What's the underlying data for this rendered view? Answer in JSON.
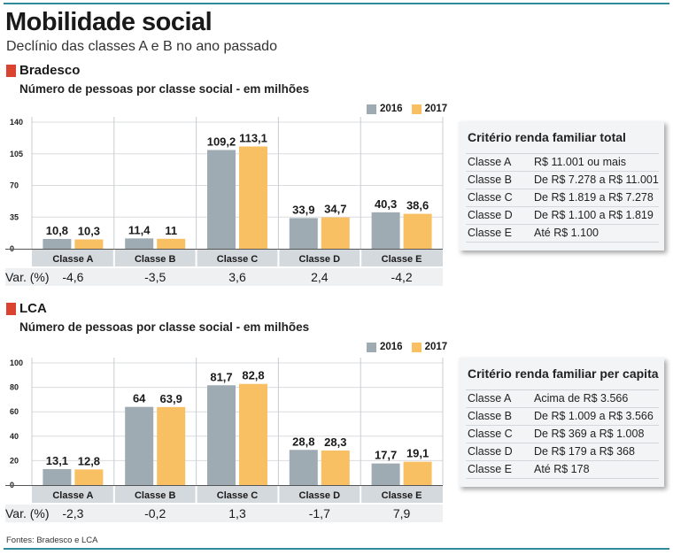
{
  "header": {
    "title": "Mobilidade social",
    "subtitle": "Declínio das classes A e B no ano passado"
  },
  "colors": {
    "series_2016": "#9eabb3",
    "series_2017": "#f8c063",
    "accent": "#d9432f",
    "rule": "#2e8b9a"
  },
  "footer": {
    "source": "Fontes: Bradesco e LCA"
  },
  "chart_data": [
    {
      "type": "bar",
      "section": "Bradesco",
      "title": "Número de pessoas por classe social - em milhões",
      "categories": [
        "Classe A",
        "Classe B",
        "Classe C",
        "Classe D",
        "Classe E"
      ],
      "series": [
        {
          "name": "2016",
          "values": [
            10.8,
            11.4,
            109.2,
            33.9,
            40.3
          ],
          "labels": [
            "10,8",
            "11,4",
            "109,2",
            "33,9",
            "40,3"
          ]
        },
        {
          "name": "2017",
          "values": [
            10.3,
            11,
            113.1,
            34.7,
            38.6
          ],
          "labels": [
            "10,3",
            "11",
            "113,1",
            "34,7",
            "38,6"
          ]
        }
      ],
      "ylim": [
        0,
        140
      ],
      "yticks": [
        0,
        35,
        70,
        105,
        140
      ],
      "variation_label": "Var. (%)",
      "variation": [
        "-4,6",
        "-3,5",
        "3,6",
        "2,4",
        "-4,2"
      ],
      "criteria": {
        "title": "Critério renda familiar total",
        "rows": [
          {
            "class": "Classe A",
            "range": "R$ 11.001 ou mais"
          },
          {
            "class": "Classe B",
            "range": "De R$ 7.278 a R$ 11.001"
          },
          {
            "class": "Classe C",
            "range": "De R$ 1.819 a R$ 7.278"
          },
          {
            "class": "Classe D",
            "range": "De R$ 1.100 a R$ 1.819"
          },
          {
            "class": "Classe E",
            "range": "Até R$ 1.100"
          }
        ]
      }
    },
    {
      "type": "bar",
      "section": "LCA",
      "title": "Número de pessoas por classe social - em milhões",
      "categories": [
        "Classe A",
        "Classe B",
        "Classe C",
        "Classe D",
        "Classe E"
      ],
      "series": [
        {
          "name": "2016",
          "values": [
            13.1,
            64,
            81.7,
            28.8,
            17.7
          ],
          "labels": [
            "13,1",
            "64",
            "81,7",
            "28,8",
            "17,7"
          ]
        },
        {
          "name": "2017",
          "values": [
            12.8,
            63.9,
            82.8,
            28.3,
            19.1
          ],
          "labels": [
            "12,8",
            "63,9",
            "82,8",
            "28,3",
            "19,1"
          ]
        }
      ],
      "ylim": [
        0,
        100
      ],
      "yticks": [
        0,
        20,
        40,
        60,
        80,
        100
      ],
      "variation_label": "Var. (%)",
      "variation": [
        "-2,3",
        "-0,2",
        "1,3",
        "-1,7",
        "7,9"
      ],
      "criteria": {
        "title": "Critério renda familiar per capita",
        "rows": [
          {
            "class": "Classe A",
            "range": "Acima de R$ 3.566"
          },
          {
            "class": "Classe B",
            "range": "De R$ 1.009 a R$ 3.566"
          },
          {
            "class": "Classe C",
            "range": "De R$ 369 a R$ 1.008"
          },
          {
            "class": "Classe D",
            "range": "De R$ 179 a R$ 368"
          },
          {
            "class": "Classe E",
            "range": "Até R$ 178"
          }
        ]
      }
    }
  ]
}
